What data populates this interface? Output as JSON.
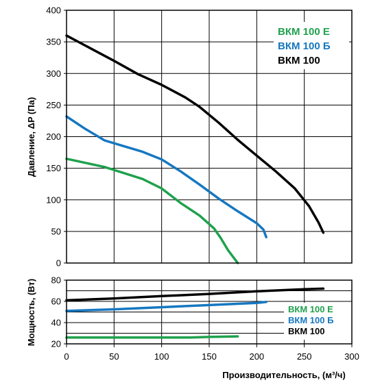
{
  "chart_data": [
    {
      "type": "line",
      "ylabel": "Давление, ΔP (Па)",
      "xlim": [
        0,
        300
      ],
      "ylim": [
        0,
        400
      ],
      "xticks": [
        "0",
        "50",
        "100",
        "150",
        "200",
        "250",
        "300"
      ],
      "yticks": [
        "0",
        "50",
        "100",
        "150",
        "200",
        "250",
        "300",
        "350",
        "400"
      ],
      "grid": true,
      "legend": "top-right",
      "series": [
        {
          "name": "ВКМ 100 Е",
          "color": "#1fa14d",
          "x": [
            0,
            40,
            80,
            100,
            120,
            140,
            155,
            162,
            170,
            180
          ],
          "y": [
            165,
            152,
            133,
            118,
            95,
            75,
            55,
            40,
            20,
            0
          ]
        },
        {
          "name": "ВКМ 100 Б",
          "color": "#1577c0",
          "x": [
            0,
            20,
            40,
            60,
            80,
            100,
            120,
            140,
            160,
            180,
            200,
            207,
            210
          ],
          "y": [
            232,
            212,
            194,
            185,
            176,
            164,
            145,
            124,
            102,
            82,
            63,
            53,
            41
          ]
        },
        {
          "name": "ВКМ 100",
          "color": "#000000",
          "x": [
            0,
            25,
            50,
            75,
            100,
            125,
            140,
            160,
            180,
            200,
            220,
            240,
            255,
            265,
            270
          ],
          "y": [
            360,
            340,
            320,
            299,
            282,
            262,
            247,
            222,
            195,
            170,
            145,
            118,
            90,
            64,
            48
          ]
        }
      ]
    },
    {
      "type": "line",
      "xlabel": "Производительность, (м³/ч)",
      "ylabel": "Мощность, (Вт)",
      "xlim": [
        0,
        300
      ],
      "ylim": [
        20,
        80
      ],
      "xticks": [
        "0",
        "50",
        "100",
        "150",
        "200",
        "250",
        "300"
      ],
      "yticks": [
        "20",
        "40",
        "60",
        "80"
      ],
      "grid": true,
      "legend": "bottom-right",
      "series": [
        {
          "name": "ВКМ 100 Е",
          "color": "#1fa14d",
          "x": [
            0,
            50,
            100,
            130,
            150,
            180
          ],
          "y": [
            26,
            26,
            26,
            26,
            26.5,
            27
          ]
        },
        {
          "name": "ВКМ 100 Б",
          "color": "#1577c0",
          "x": [
            0,
            50,
            100,
            150,
            200,
            210
          ],
          "y": [
            51,
            52.5,
            54.5,
            56.5,
            58.5,
            59.5
          ]
        },
        {
          "name": "ВКМ 100",
          "color": "#000000",
          "x": [
            0,
            50,
            100,
            150,
            200,
            250,
            270
          ],
          "y": [
            61,
            62.8,
            65,
            67,
            69.5,
            71.5,
            72
          ]
        }
      ]
    }
  ]
}
